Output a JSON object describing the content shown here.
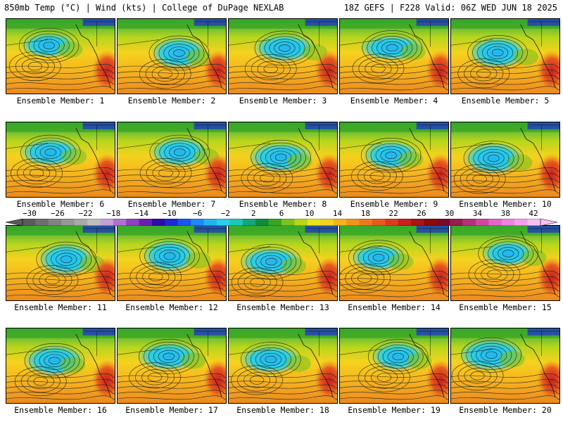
{
  "header": {
    "left": "850mb Temp (°C) | Wind (kts) | College of DuPage NEXLAB",
    "right": "18Z GEFS | F228 Valid: 06Z WED JUN 18 2025"
  },
  "members": [
    {
      "label": "Ensemble Member: 1"
    },
    {
      "label": "Ensemble Member: 2"
    },
    {
      "label": "Ensemble Member: 3"
    },
    {
      "label": "Ensemble Member: 4"
    },
    {
      "label": "Ensemble Member: 5"
    },
    {
      "label": "Ensemble Member: 6"
    },
    {
      "label": "Ensemble Member: 7"
    },
    {
      "label": "Ensemble Member: 8"
    },
    {
      "label": "Ensemble Member: 9"
    },
    {
      "label": "Ensemble Member: 10"
    },
    {
      "label": "Ensemble Member: 11"
    },
    {
      "label": "Ensemble Member: 12"
    },
    {
      "label": "Ensemble Member: 13"
    },
    {
      "label": "Ensemble Member: 14"
    },
    {
      "label": "Ensemble Member: 15"
    },
    {
      "label": "Ensemble Member: 16"
    },
    {
      "label": "Ensemble Member: 17"
    },
    {
      "label": "Ensemble Member: 18"
    },
    {
      "label": "Ensemble Member: 19"
    },
    {
      "label": "Ensemble Member: 20"
    }
  ],
  "colorbar": {
    "labels": [
      "−30",
      "−26",
      "−22",
      "−18",
      "−14",
      "−10",
      "−6",
      "−2",
      "2",
      "6",
      "10",
      "14",
      "18",
      "22",
      "26",
      "30",
      "34",
      "38",
      "42"
    ],
    "colors": [
      "#5a5a5a",
      "#6e6e6e",
      "#828282",
      "#969696",
      "#aaaaaa",
      "#bebebe",
      "#c8a0d8",
      "#b070d0",
      "#9040c0",
      "#6a1fb0",
      "#2b0ea6",
      "#1c2bd8",
      "#1a55f0",
      "#1e8af5",
      "#22b4f0",
      "#2ad0e6",
      "#1ec8b4",
      "#13a87a",
      "#0f8c3c",
      "#3aa623",
      "#7cc31e",
      "#b8d61c",
      "#e6e61a",
      "#f5d21e",
      "#f5b41e",
      "#f0961e",
      "#eb781e",
      "#e65a1e",
      "#dc3c1e",
      "#c81e1e",
      "#aa1414",
      "#8c0a0a",
      "#780a28",
      "#961e50",
      "#b43278",
      "#d246a0",
      "#e664c8",
      "#f082e1",
      "#f5a0eb",
      "#f8c0f2"
    ]
  }
}
